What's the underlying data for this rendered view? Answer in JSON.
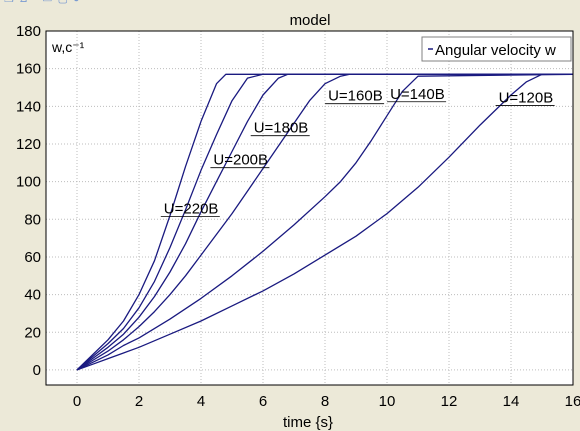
{
  "window": {
    "toolbar_glyphs": "❒ ⊿ ▫ ▭ ▢ ●"
  },
  "chart_data": {
    "type": "line",
    "title": "model",
    "xlabel": "time {s}",
    "ylabel": "w,c⁻¹",
    "xlim": [
      -1,
      16
    ],
    "ylim": [
      -8,
      180
    ],
    "xticks": [
      0,
      2,
      4,
      6,
      8,
      10,
      12,
      14,
      16
    ],
    "yticks": [
      0,
      20,
      40,
      60,
      80,
      100,
      120,
      140,
      160,
      180
    ],
    "grid": true,
    "legend": {
      "position": "top-right",
      "entries": [
        "Angular velocity w"
      ]
    },
    "line_color": "#1a1a80",
    "background_color": "#ffffff",
    "series": [
      {
        "label": "U=220B",
        "x": [
          0,
          0.5,
          1,
          1.5,
          2,
          2.5,
          3,
          3.5,
          4,
          4.5,
          4.8,
          5,
          16
        ],
        "y": [
          0,
          8,
          16,
          26,
          40,
          58,
          82,
          108,
          132,
          152,
          157,
          157,
          157
        ]
      },
      {
        "label": "U=200B",
        "x": [
          0,
          0.5,
          1,
          1.5,
          2,
          2.5,
          3,
          3.5,
          4,
          4.5,
          5,
          5.5,
          6,
          16
        ],
        "y": [
          0,
          7,
          14,
          22,
          33,
          47,
          65,
          85,
          106,
          125,
          143,
          155,
          157,
          157
        ]
      },
      {
        "label": "U=180B",
        "x": [
          0,
          0.5,
          1,
          1.5,
          2,
          2.5,
          3,
          3.5,
          4,
          4.5,
          5,
          5.5,
          6,
          6.5,
          6.8,
          16
        ],
        "y": [
          0,
          6,
          12,
          19,
          28,
          39,
          52,
          67,
          84,
          100,
          116,
          132,
          146,
          155,
          157,
          157
        ]
      },
      {
        "label": "U=160B",
        "x": [
          0,
          0.5,
          1,
          1.5,
          2,
          2.5,
          3,
          3.5,
          4,
          4.5,
          5,
          5.5,
          6,
          6.5,
          7,
          7.5,
          8,
          8.5,
          8.8,
          16
        ],
        "y": [
          0,
          5,
          10,
          16,
          23,
          31,
          40,
          50,
          61,
          72,
          83,
          95,
          107,
          119,
          131,
          143,
          152,
          156,
          157,
          157
        ]
      },
      {
        "label": "U=140B",
        "x": [
          0,
          0.5,
          1,
          1.5,
          2,
          3,
          4,
          5,
          6,
          7,
          8,
          8.5,
          9,
          9.5,
          10,
          10.5,
          11,
          16
        ],
        "y": [
          0,
          4,
          8,
          13,
          17,
          27,
          38,
          50,
          63,
          77,
          92,
          100,
          110,
          122,
          135,
          148,
          156,
          157
        ]
      },
      {
        "label": "U=120B",
        "x": [
          0,
          0.5,
          1,
          1.5,
          2,
          3,
          4,
          5,
          6,
          7,
          8,
          9,
          10,
          11,
          12,
          13,
          14,
          14.5,
          15,
          16
        ],
        "y": [
          0,
          3,
          6,
          9,
          12,
          19,
          26,
          34,
          42,
          51,
          61,
          71,
          83,
          97,
          113,
          130,
          146,
          153,
          157,
          157
        ]
      }
    ],
    "curve_labels": [
      {
        "text": "U=220B",
        "x": 2.8,
        "y": 83
      },
      {
        "text": "U=200B",
        "x": 4.4,
        "y": 109
      },
      {
        "text": "U=180B",
        "x": 5.7,
        "y": 126
      },
      {
        "text": "U=160B",
        "x": 8.1,
        "y": 143
      },
      {
        "text": "U=140B",
        "x": 10.1,
        "y": 144
      },
      {
        "text": "U=120B",
        "x": 13.6,
        "y": 142
      }
    ]
  }
}
